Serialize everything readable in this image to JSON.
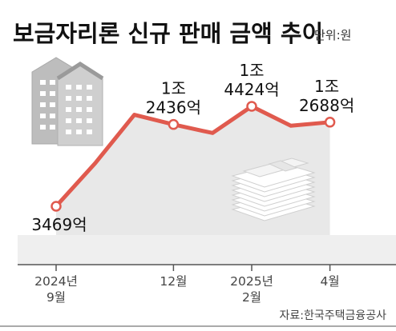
{
  "chart_data": {
    "type": "area",
    "title": "보금자리론 신규 판매 금액 추이",
    "unit": "단위:원",
    "source": "자료:한국주택금융공사",
    "x_ticks": [
      {
        "line1": "2024년",
        "line2": "9월"
      },
      {
        "line1": "12월",
        "line2": ""
      },
      {
        "line1": "2025년",
        "line2": "2월"
      },
      {
        "line1": "4월",
        "line2": ""
      }
    ],
    "points": [
      {
        "month": "2024-09",
        "value": 3469,
        "label": [
          "3469억"
        ]
      },
      {
        "month": "2024-10",
        "value": 8200
      },
      {
        "month": "2024-11",
        "value": 13500
      },
      {
        "month": "2024-12",
        "value": 12436,
        "label": [
          "1조",
          "2436억"
        ]
      },
      {
        "month": "2025-01",
        "value": 11500
      },
      {
        "month": "2025-02",
        "value": 14424,
        "label": [
          "1조",
          "4424억"
        ]
      },
      {
        "month": "2025-03",
        "value": 12300
      },
      {
        "month": "2025-04",
        "value": 12688,
        "label": [
          "1조",
          "2688억"
        ]
      }
    ],
    "value_unit": "억원",
    "line_color": "#e05a4e",
    "area_color": "#e8e8e8",
    "grid": false,
    "legend": false
  }
}
